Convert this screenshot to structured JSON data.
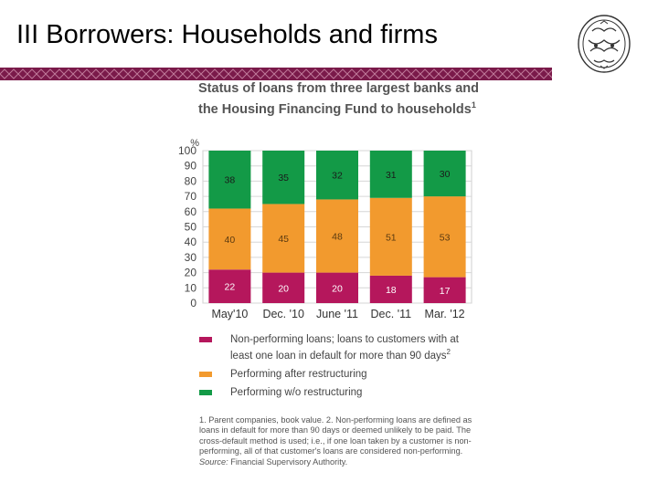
{
  "slide": {
    "title": "III Borrowers: Households and firms",
    "rule_color": "#7a1a4a"
  },
  "logo": {
    "icon": "seal-logo-icon"
  },
  "chart_data": {
    "type": "bar",
    "stacked": true,
    "title_line1": "Status of loans from three largest banks and",
    "title_line2": "the Housing Financing Fund to households",
    "title_note": "1",
    "ylabel": "%",
    "ylim": [
      0,
      100
    ],
    "yticks": [
      0,
      10,
      20,
      30,
      40,
      50,
      60,
      70,
      80,
      90,
      100
    ],
    "grid": true,
    "categories": [
      "May'10",
      "Dec. '10",
      "June '11",
      "Dec. '11",
      "Mar. '12"
    ],
    "series": [
      {
        "key": "npl",
        "color": "#b5175c",
        "values": [
          22,
          20,
          20,
          18,
          17
        ]
      },
      {
        "key": "restructured",
        "color": "#f29a2e",
        "values": [
          40,
          45,
          48,
          51,
          53
        ]
      },
      {
        "key": "norestructure",
        "color": "#139a47",
        "values": [
          38,
          35,
          32,
          31,
          30
        ]
      }
    ],
    "legend_position": "bottom"
  },
  "legend": {
    "items": [
      {
        "color": "#b5175c",
        "line1": "Non-performing loans; loans to customers with at",
        "line2": "least one loan in default for more than 90 days",
        "note": "2"
      },
      {
        "color": "#f29a2e",
        "line1": "Performing after restructuring",
        "line2": "",
        "note": ""
      },
      {
        "color": "#139a47",
        "line1": "Performing w/o restructuring",
        "line2": "",
        "note": ""
      }
    ]
  },
  "footnote": {
    "text": "1. Parent companies, book value. 2. Non-performing loans are defined as loans in default for more than 90 days or deemed unlikely to be paid. The cross-default method is used; i.e., if one loan taken by a customer is non-performing, all of that customer's loans are considered non-performing.",
    "source_label": "Source:",
    "source_text": "Financial Supervisory Authority."
  }
}
